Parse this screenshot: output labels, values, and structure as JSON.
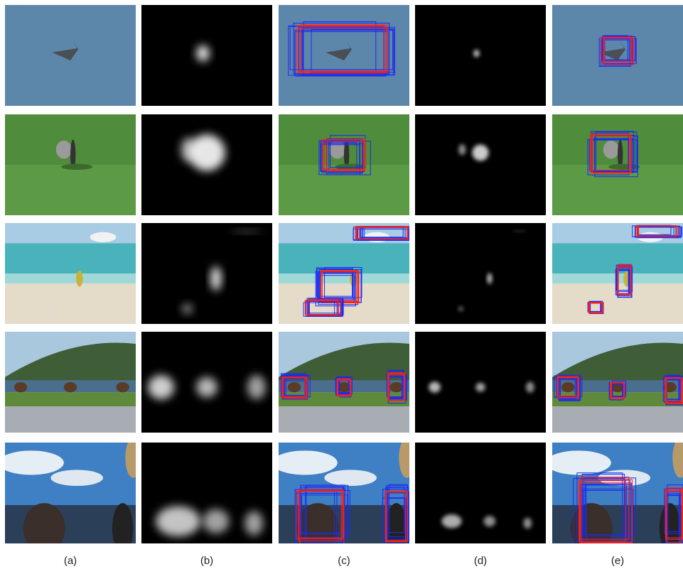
{
  "labels": [
    "(a)",
    "(b)",
    "(c)",
    "(d)",
    "(e)"
  ]
}
